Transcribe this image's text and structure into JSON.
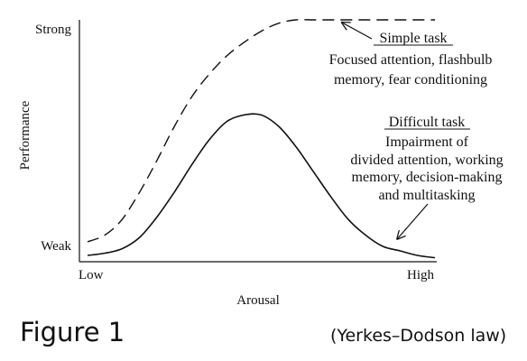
{
  "figure": {
    "label": "Figure 1",
    "note": "(Yerkes–Dodson law)"
  },
  "chart_data": {
    "type": "line",
    "title": "",
    "xlabel": "Arousal",
    "ylabel": "Performance",
    "x_ticks": [
      "Low",
      "High"
    ],
    "y_ticks": [
      "Weak",
      "Strong"
    ],
    "xlim": [
      0,
      1
    ],
    "ylim": [
      0,
      1
    ],
    "grid": false,
    "series": [
      {
        "name": "Simple task",
        "style": "dashed",
        "color": "#111111",
        "x": [
          0.0,
          0.05,
          0.1,
          0.15,
          0.2,
          0.25,
          0.3,
          0.35,
          0.4,
          0.45,
          0.5,
          0.55,
          0.6,
          0.65,
          0.7,
          0.75,
          0.8,
          0.85,
          0.9,
          0.95,
          1.0
        ],
        "y": [
          0.02,
          0.05,
          0.12,
          0.24,
          0.38,
          0.53,
          0.66,
          0.76,
          0.84,
          0.9,
          0.95,
          0.985,
          1.0,
          1.0,
          1.0,
          1.0,
          1.0,
          1.0,
          1.0,
          1.0,
          1.0
        ]
      },
      {
        "name": "Difficult task",
        "style": "solid",
        "color": "#111111",
        "x": [
          0.0,
          0.05,
          0.1,
          0.15,
          0.2,
          0.25,
          0.3,
          0.35,
          0.4,
          0.45,
          0.5,
          0.55,
          0.6,
          0.65,
          0.7,
          0.75,
          0.8,
          0.85,
          0.9,
          0.95,
          1.0
        ],
        "y": [
          -0.04,
          -0.03,
          -0.01,
          0.04,
          0.13,
          0.24,
          0.36,
          0.47,
          0.55,
          0.58,
          0.58,
          0.53,
          0.44,
          0.33,
          0.22,
          0.12,
          0.05,
          0.0,
          -0.02,
          -0.04,
          -0.05
        ]
      }
    ],
    "annotations": [
      {
        "id": "simple",
        "title": "Simple task",
        "lines": [
          "Focused attention, flashbulb",
          "memory, fear conditioning"
        ],
        "arrow_to": [
          0.73,
          0.99
        ]
      },
      {
        "id": "difficult",
        "title": "Difficult task",
        "lines": [
          "Impairment of",
          "divided attention, working",
          "memory, decision-making",
          "and multitasking"
        ],
        "arrow_to": [
          0.89,
          0.03
        ]
      }
    ]
  }
}
